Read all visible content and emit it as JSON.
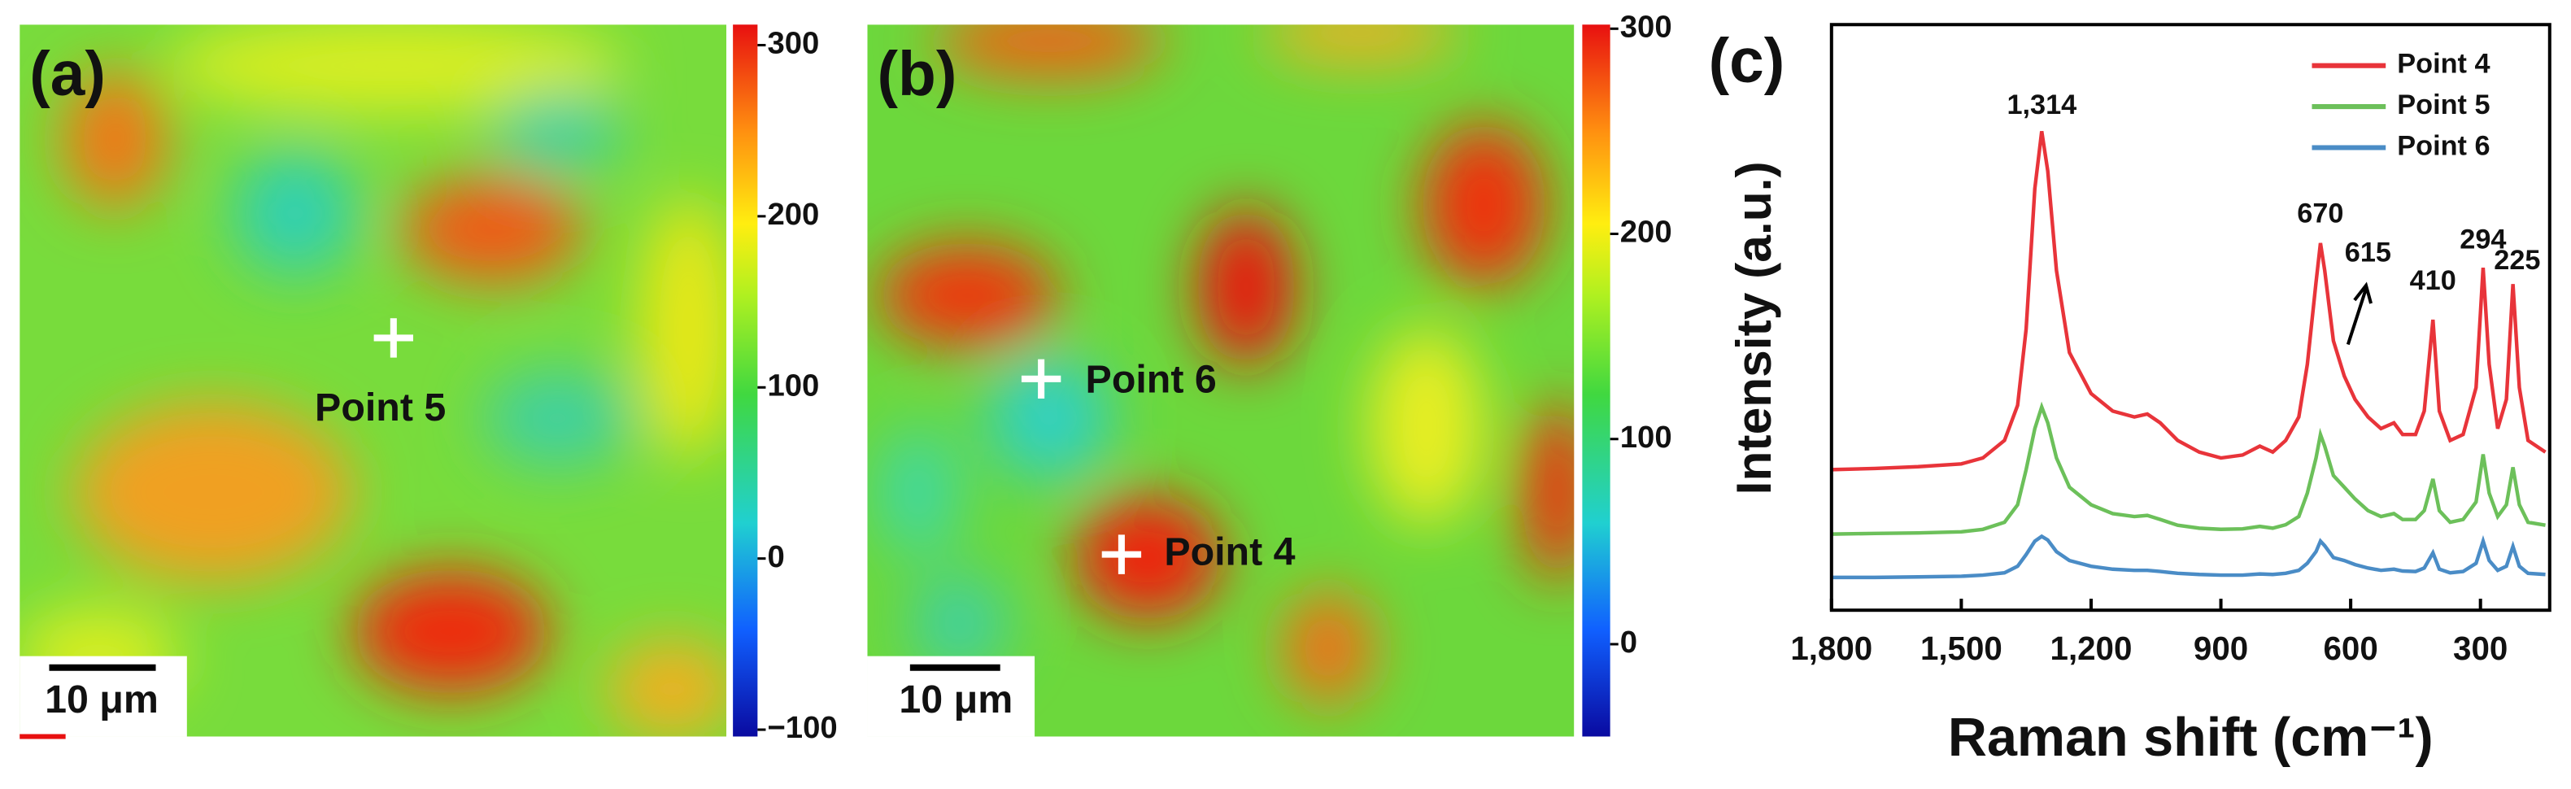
{
  "chart_data": [
    {
      "type": "heatmap",
      "title": "(a)",
      "clim": [
        -104,
        312
      ],
      "cticks": [
        {
          "value": -100,
          "label": "−100"
        },
        0,
        100,
        200,
        300
      ],
      "annotations": [
        "Point 5"
      ],
      "scale_bar": "10 μm"
    },
    {
      "type": "heatmap",
      "title": "(b)",
      "clim": [
        -45,
        302
      ],
      "cticks": [
        0,
        100,
        200,
        300
      ],
      "annotations": [
        "Point 6",
        "Point 4"
      ],
      "scale_bar": "10 μm"
    },
    {
      "type": "line",
      "title": "(c)",
      "xlabel": "Raman shift (cm⁻¹)",
      "ylabel": "Intensity (a.u.)",
      "xlim": [
        1800,
        140
      ],
      "ylim": [
        0,
        100
      ],
      "xticks": [
        {
          "value": 1800,
          "label": "1,800"
        },
        {
          "value": 1500,
          "label": "1,500"
        },
        {
          "value": 1200,
          "label": "1,200"
        },
        900,
        600,
        300
      ],
      "legend": "upper right",
      "x": [
        1800,
        1700,
        1600,
        1500,
        1450,
        1400,
        1370,
        1350,
        1330,
        1314,
        1300,
        1280,
        1250,
        1200,
        1150,
        1100,
        1070,
        1040,
        1000,
        950,
        900,
        850,
        810,
        780,
        750,
        720,
        700,
        680,
        670,
        660,
        640,
        615,
        590,
        560,
        530,
        500,
        480,
        450,
        430,
        410,
        395,
        370,
        340,
        310,
        294,
        280,
        260,
        240,
        225,
        210,
        190,
        150
      ],
      "series": [
        {
          "name": "Point 4",
          "color": "#e8343a",
          "values": [
            24,
            24.2,
            24.5,
            25,
            26,
            29,
            35,
            48,
            72,
            81.8,
            75,
            58,
            44,
            37,
            34,
            33,
            33.5,
            32,
            29,
            27,
            26,
            26.5,
            28,
            27,
            29,
            33,
            42,
            56,
            62.7,
            58,
            46,
            40,
            36,
            33,
            31,
            32,
            30,
            30,
            34,
            49.6,
            34,
            29,
            30,
            38,
            58.5,
            42,
            31,
            36,
            55.7,
            38,
            29,
            27
          ]
        },
        {
          "name": "Point 5",
          "color": "#6cc05a",
          "values": [
            13,
            13.1,
            13.2,
            13.4,
            13.8,
            15,
            18,
            24,
            31,
            34.7,
            32,
            26,
            21,
            18,
            16.5,
            16,
            16.2,
            15.5,
            14.5,
            14,
            13.8,
            13.9,
            14.3,
            14,
            14.6,
            16,
            20,
            26,
            30,
            28,
            23,
            21,
            19,
            17,
            16,
            16.5,
            15.5,
            15.5,
            17,
            22.4,
            17,
            15,
            15.5,
            18.5,
            26.6,
            20,
            16,
            18,
            24.4,
            18,
            15,
            14.5
          ]
        },
        {
          "name": "Point 6",
          "color": "#4a8cc6",
          "values": [
            5.6,
            5.6,
            5.7,
            5.8,
            6,
            6.4,
            7.5,
            9.5,
            11.8,
            12.6,
            12,
            10,
            8.5,
            7.5,
            7,
            6.8,
            6.8,
            6.6,
            6.3,
            6.1,
            6,
            6,
            6.2,
            6.1,
            6.3,
            6.8,
            8,
            10,
            11.8,
            11,
            9,
            8.5,
            7.8,
            7.2,
            6.8,
            7,
            6.7,
            6.6,
            7.2,
            9.8,
            7,
            6.4,
            6.6,
            8,
            11.8,
            8.5,
            6.8,
            7.5,
            10.9,
            7.5,
            6.3,
            6.1
          ]
        }
      ],
      "annotations": [
        {
          "text": "1,314",
          "x": 1314,
          "y": 86
        },
        {
          "text": "670",
          "x": 670,
          "y": 67.5
        },
        {
          "text": "615",
          "x": 560,
          "y": 60.8
        },
        {
          "text": "410",
          "x": 410,
          "y": 56
        },
        {
          "text": "294",
          "x": 294,
          "y": 63
        },
        {
          "text": "225",
          "x": 215,
          "y": 59.5
        }
      ]
    }
  ]
}
